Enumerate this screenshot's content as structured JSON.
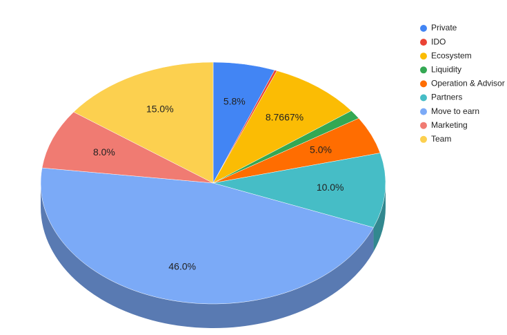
{
  "chart_data": {
    "type": "pie",
    "categories": [
      "Private",
      "IDO",
      "Ecosystem",
      "Liquidity",
      "Operation & Advisor",
      "Partners",
      "Move to earn",
      "Marketing",
      "Team"
    ],
    "values": [
      5.8,
      0.2333,
      8.7667,
      1.2,
      5.0,
      10.0,
      46.0,
      8.0,
      15.0
    ],
    "value_labels": [
      "5.8%",
      null,
      "8.7667%",
      null,
      "5.0%",
      "10.0%",
      "46.0%",
      "8.0%",
      "15.0%"
    ],
    "colors": [
      "#4285f4",
      "#ea4335",
      "#fbbc04",
      "#34a853",
      "#ff6d01",
      "#46bdc6",
      "#7baaf7",
      "#f07b72",
      "#fcd04f"
    ],
    "legend": "right",
    "three_d": true
  }
}
